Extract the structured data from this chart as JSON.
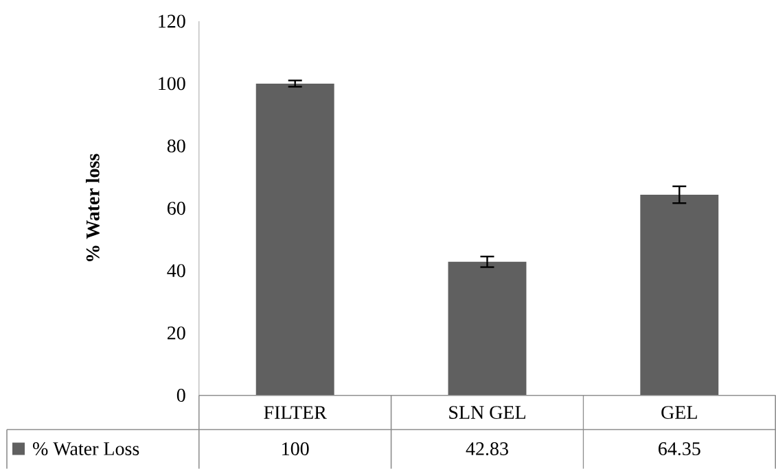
{
  "chart_data": {
    "type": "bar",
    "ylabel": "% Water loss",
    "categories": [
      "FILTER",
      "SLN GEL",
      "GEL"
    ],
    "series": [
      {
        "name": "% Water Loss",
        "color": "#606060",
        "values": [
          100,
          42.83,
          64.35
        ],
        "errors": [
          1.0,
          1.7,
          2.7
        ]
      }
    ],
    "ylim": [
      0,
      120
    ],
    "yticks": [
      0,
      20,
      40,
      60,
      80,
      100,
      120
    ],
    "data_labels": true,
    "legend": "bottom left",
    "grid": false
  }
}
